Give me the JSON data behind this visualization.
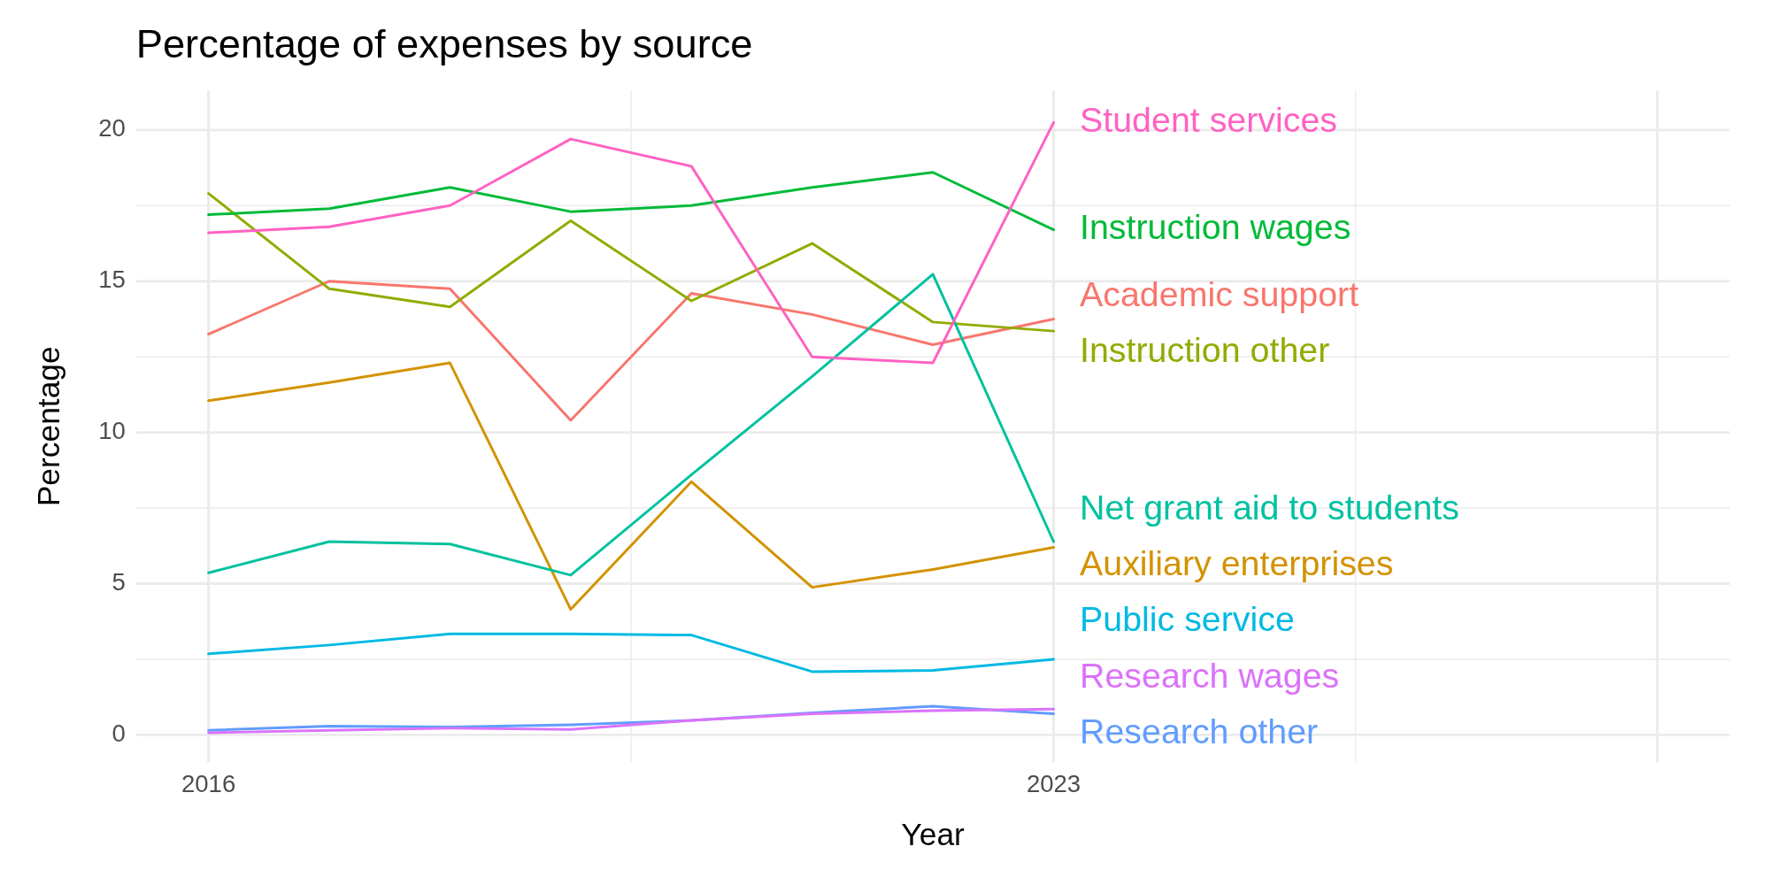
{
  "chart_data": {
    "type": "line",
    "title": "Percentage of expenses by source",
    "xlabel": "Year",
    "ylabel": "Percentage",
    "x": [
      2016,
      2017,
      2018,
      2019,
      2020,
      2021,
      2022,
      2023
    ],
    "xlim": [
      2015.4,
      2028.6
    ],
    "xticks": [
      2016,
      2023,
      {
        "value": 2028,
        "label": null
      }
    ],
    "ylim": [
      -0.9,
      21.3
    ],
    "yticks": [
      0,
      5,
      10,
      15,
      20
    ],
    "grid": true,
    "legend": false,
    "marker": "none",
    "line_style": "solid",
    "series": [
      {
        "name": "Academic support",
        "color": "#f8766d",
        "values": [
          13.25,
          15.0,
          14.75,
          10.4,
          14.6,
          13.9,
          12.9,
          13.75
        ]
      },
      {
        "name": "Auxiliary enterprises",
        "color": "#d39200",
        "values": [
          11.05,
          11.65,
          12.3,
          4.15,
          8.37,
          4.88,
          5.47,
          6.2
        ]
      },
      {
        "name": "Instruction other",
        "color": "#93aa00",
        "values": [
          17.9,
          14.75,
          14.15,
          17.0,
          14.35,
          16.25,
          13.65,
          13.35
        ]
      },
      {
        "name": "Instruction wages",
        "color": "#00ba38",
        "values": [
          17.2,
          17.4,
          18.1,
          17.3,
          17.5,
          18.1,
          18.6,
          16.7
        ]
      },
      {
        "name": "Net grant aid to students",
        "color": "#00c19f",
        "values": [
          5.36,
          6.39,
          6.31,
          5.28,
          8.6,
          11.85,
          15.23,
          6.39
        ]
      },
      {
        "name": "Public service",
        "color": "#00b9e3",
        "values": [
          2.68,
          2.97,
          3.34,
          3.34,
          3.3,
          2.09,
          2.13,
          2.5
        ]
      },
      {
        "name": "Research other",
        "color": "#619cff",
        "values": [
          0.15,
          0.29,
          0.26,
          0.33,
          0.48,
          0.73,
          0.95,
          0.7
        ]
      },
      {
        "name": "Research wages",
        "color": "#db72fb",
        "values": [
          0.07,
          0.15,
          0.22,
          0.18,
          0.48,
          0.7,
          0.8,
          0.85
        ]
      },
      {
        "name": "Student services",
        "color": "#ff61c3",
        "values": [
          16.6,
          16.8,
          17.5,
          19.7,
          18.8,
          12.5,
          12.3,
          20.25
        ]
      }
    ]
  }
}
